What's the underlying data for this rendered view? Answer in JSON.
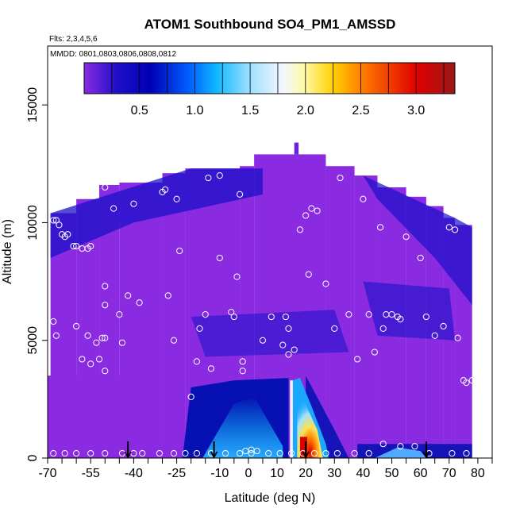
{
  "chart_data": {
    "type": "heatmap",
    "title": "ATOM1 Southbound SO4_PM1_AMSSD",
    "flights_note": "Flts: 2,3,4,5,6",
    "dates_note": "MMDD: 0801,0803,0806,0808,0812",
    "xlabel": "Latitude (deg N)",
    "ylabel": "Altitude (m)",
    "xlim": [
      -70,
      85
    ],
    "ylim": [
      0,
      17500
    ],
    "x_ticks": [
      -70,
      -55,
      -40,
      -25,
      -10,
      0,
      10,
      20,
      30,
      40,
      50,
      60,
      70,
      80
    ],
    "x_tick_labels": [
      "-70",
      "-55",
      "-40",
      "-25",
      "-10",
      "0",
      "10",
      "20",
      "30",
      "40",
      "50",
      "60",
      "70",
      "80"
    ],
    "x_minor_ticks": [
      -65,
      -60,
      -50,
      -45,
      -35,
      -30,
      -20,
      -15,
      -5,
      5,
      15,
      25,
      35,
      45,
      55,
      65,
      75,
      85
    ],
    "y_ticks": [
      0,
      5000,
      10000,
      15000
    ],
    "y_tick_labels": [
      "0",
      "5000",
      "10000",
      "15000"
    ],
    "colorbar": {
      "range": [
        0,
        3.35
      ],
      "ticks": [
        0.5,
        1.0,
        1.5,
        2.0,
        2.5,
        3.0
      ],
      "tick_labels": [
        "0.5",
        "1.0",
        "1.5",
        "2.0",
        "2.5",
        "3.0"
      ],
      "stops": [
        {
          "v": 0.0,
          "color": "#8a2be2"
        },
        {
          "v": 0.3,
          "color": "#1e0fc8"
        },
        {
          "v": 0.6,
          "color": "#0000b4"
        },
        {
          "v": 0.95,
          "color": "#0060ff"
        },
        {
          "v": 1.2,
          "color": "#10b8ff"
        },
        {
          "v": 1.5,
          "color": "#a0e0ff"
        },
        {
          "v": 1.8,
          "color": "#f4f8ff"
        },
        {
          "v": 2.0,
          "color": "#fff8a0"
        },
        {
          "v": 2.25,
          "color": "#ffd000"
        },
        {
          "v": 2.5,
          "color": "#ff8000"
        },
        {
          "v": 3.0,
          "color": "#e00000"
        },
        {
          "v": 3.35,
          "color": "#9a1818"
        }
      ]
    },
    "grid": false,
    "flight_markers_lat": [
      -42,
      -12,
      20,
      62
    ]
  }
}
